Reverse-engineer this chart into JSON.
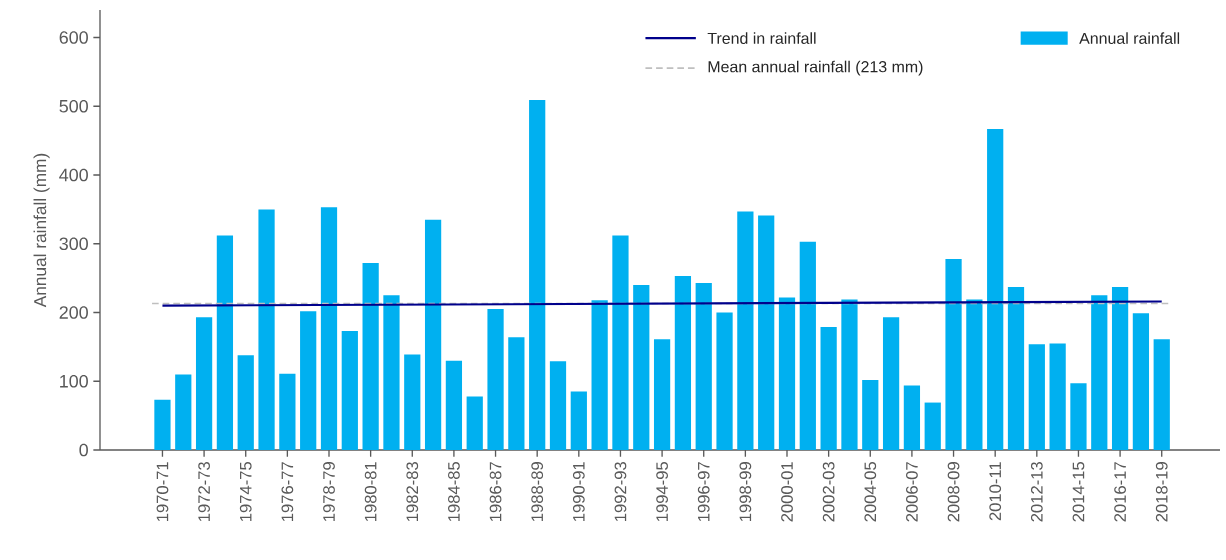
{
  "chart_data": {
    "type": "bar",
    "ylabel": "Annual rainfall (mm)",
    "categories": [
      "1970-71",
      null,
      "1972-73",
      null,
      "1974-75",
      null,
      "1976-77",
      null,
      "1978-79",
      null,
      "1980-81",
      null,
      "1982-83",
      null,
      "1984-85",
      null,
      "1986-87",
      null,
      "1988-89",
      null,
      "1990-91",
      null,
      "1992-93",
      null,
      "1994-95",
      null,
      "1996-97",
      null,
      "1998-99",
      null,
      "2000-01",
      null,
      "2002-03",
      null,
      "2004-05",
      null,
      "2006-07",
      null,
      "2008-09",
      null,
      "2010-11",
      null,
      "2012-13",
      null,
      "2014-15",
      null,
      "2016-17",
      null,
      "2018-19"
    ],
    "series": [
      {
        "name": "Annual rainfall",
        "type": "bar",
        "color": "#00b0f0",
        "values": [
          73,
          110,
          193,
          312,
          138,
          350,
          111,
          202,
          353,
          173,
          272,
          225,
          139,
          335,
          130,
          78,
          205,
          164,
          509,
          129,
          85,
          218,
          312,
          240,
          161,
          253,
          243,
          200,
          347,
          341,
          222,
          303,
          179,
          219,
          102,
          193,
          94,
          69,
          278,
          219,
          467,
          237,
          154,
          155,
          97,
          225,
          237,
          199,
          161
        ]
      },
      {
        "name": "Trend in rainfall",
        "type": "line",
        "color": "#00008b",
        "x": [
          "1970-71",
          "2018-19"
        ],
        "values": [
          210,
          216
        ]
      }
    ],
    "ref_lines": [
      {
        "axis": "y",
        "value": 213,
        "label": "Mean annual rainfall (213 mm)",
        "color": "#bfbfbf",
        "line_style": "dashed"
      }
    ],
    "ylim": [
      0,
      640
    ],
    "yticks": [
      0,
      100,
      200,
      300,
      400,
      500,
      600
    ],
    "legend": "top right",
    "grid": false
  }
}
